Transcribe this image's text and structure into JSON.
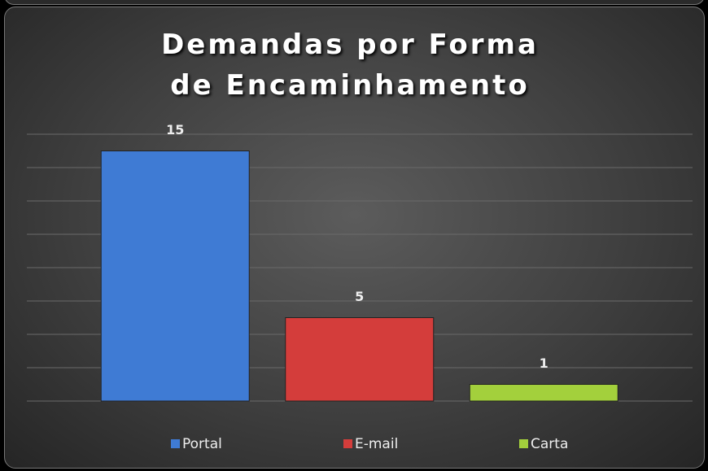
{
  "chart_data": {
    "type": "bar",
    "title": "Demandas por Forma de Encaminhamento",
    "categories": [
      "Portal",
      "E-mail",
      "Carta"
    ],
    "values": [
      15,
      5,
      1
    ],
    "colors": [
      "#3f7bd4",
      "#d43d3b",
      "#a3d03c"
    ],
    "ylim": [
      0,
      16
    ],
    "yticks": [
      0,
      2,
      4,
      6,
      8,
      10,
      12,
      14,
      16
    ],
    "grid": true,
    "legend": "bottom"
  }
}
